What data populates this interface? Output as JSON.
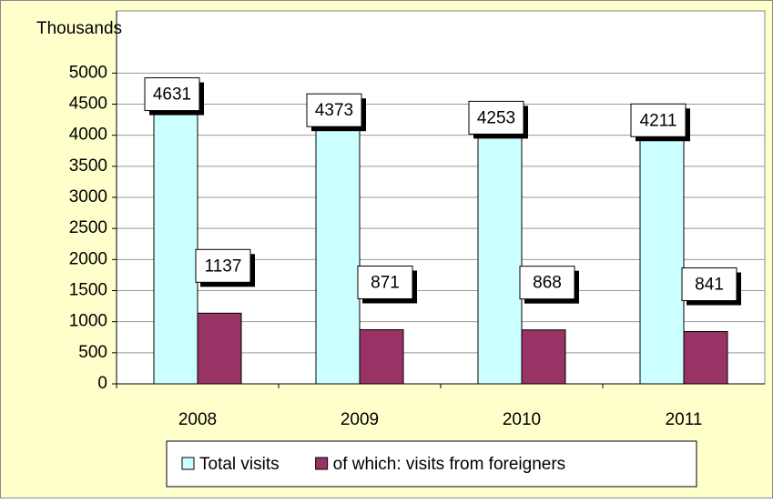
{
  "chart_data": {
    "type": "bar",
    "y_axis_label": "Thousands",
    "categories": [
      "2008",
      "2009",
      "2010",
      "2011"
    ],
    "series": [
      {
        "name": "Total visits",
        "color": "#ccffff",
        "values": [
          4631,
          4373,
          4253,
          4211
        ]
      },
      {
        "name": "of which: visits from foreigners",
        "color": "#993366",
        "values": [
          1137,
          871,
          868,
          841
        ]
      }
    ],
    "ylim": [
      0,
      6000
    ],
    "yticks": [
      0,
      500,
      1000,
      1500,
      2000,
      2500,
      3000,
      3500,
      4000,
      4500,
      5000
    ],
    "grid": true,
    "legend": "bottom"
  }
}
